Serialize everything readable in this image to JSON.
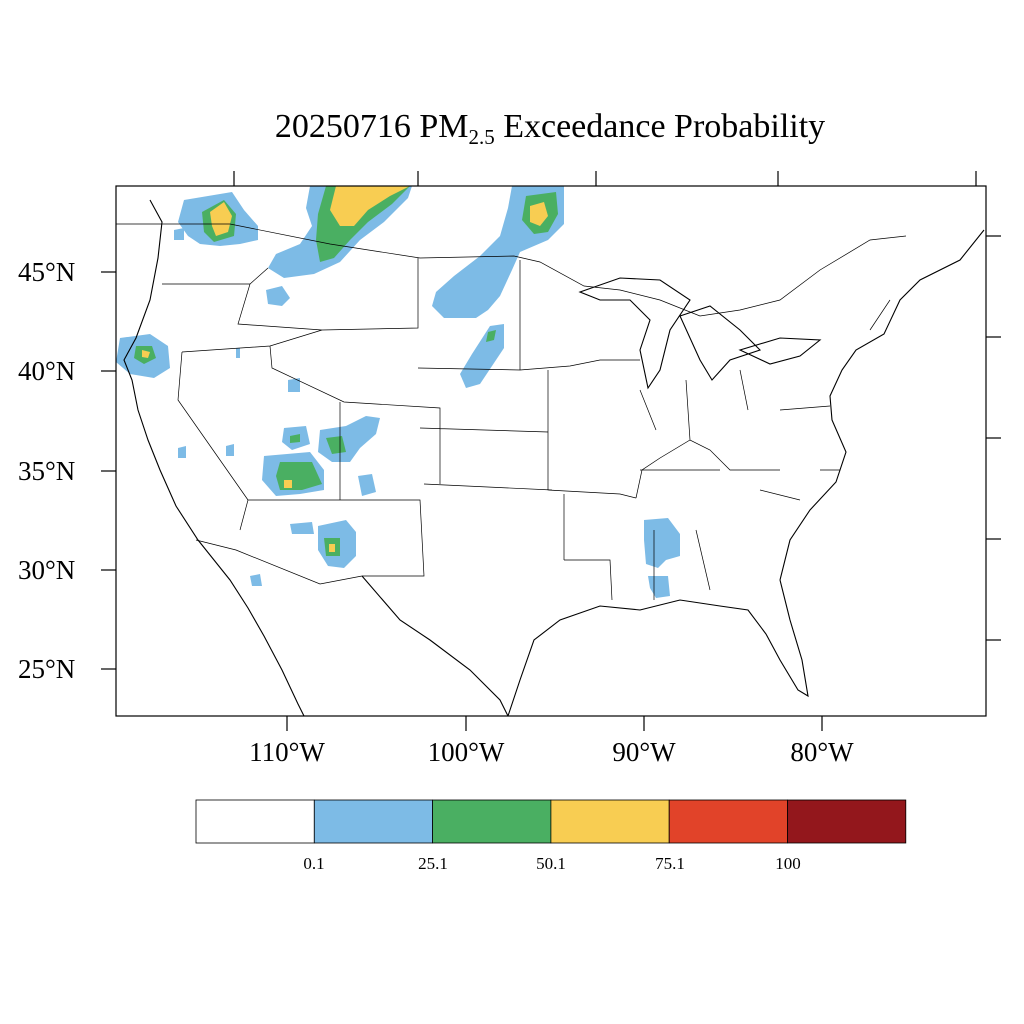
{
  "title": {
    "date": "20250716",
    "pm": "PM",
    "pm_sub": "2.5",
    "rest": " Exceedance Probability"
  },
  "axes": {
    "lat_labels": [
      "45°N",
      "40°N",
      "35°N",
      "30°N",
      "25°N"
    ],
    "lon_labels": [
      "110°W",
      "100°W",
      "90°W",
      "80°W"
    ]
  },
  "colorbar": {
    "colors": [
      "#ffffff",
      "#7dbbe6",
      "#4aaf62",
      "#f8cd52",
      "#e14329",
      "#93171c"
    ],
    "labels": [
      "0.1",
      "25.1",
      "50.1",
      "75.1",
      "100"
    ]
  },
  "regions_note_colors": {
    "low": "#7dbbe6",
    "mid": "#4aaf62",
    "high": "#f8cd52"
  }
}
